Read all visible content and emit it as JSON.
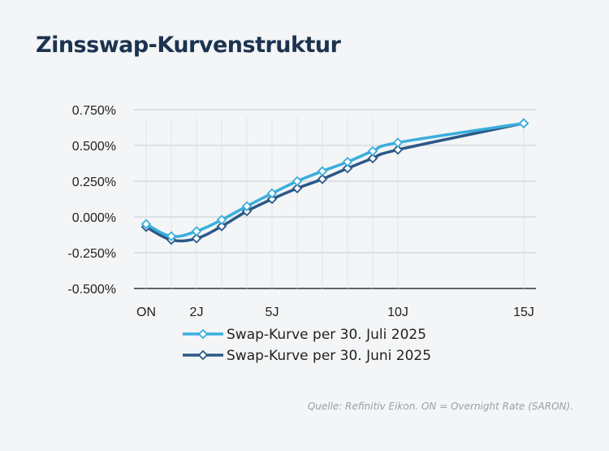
{
  "title": "Zinsswap-Kurvenstruktur",
  "source": "Quelle: Refinitiv Eikon. ON = Overnight Rate (SARON).",
  "chart_data": {
    "type": "line",
    "x": [
      0,
      1,
      2,
      3,
      4,
      5,
      6,
      7,
      8,
      9,
      10,
      15
    ],
    "xticks": [
      {
        "x": 0,
        "label": "ON"
      },
      {
        "x": 2,
        "label": "2J"
      },
      {
        "x": 5,
        "label": "5J"
      },
      {
        "x": 10,
        "label": "10J"
      },
      {
        "x": 15,
        "label": "15J"
      }
    ],
    "yticks": [
      {
        "v": 0.75,
        "label": "0.750%"
      },
      {
        "v": 0.5,
        "label": "0.500%"
      },
      {
        "v": 0.25,
        "label": "0.250%"
      },
      {
        "v": 0,
        "label": "0.000%"
      },
      {
        "v": -0.25,
        "label": "-0.250%"
      },
      {
        "v": -0.5,
        "label": "-0.500%"
      }
    ],
    "ylim": [
      -0.5,
      0.75
    ],
    "grid": true,
    "legend_position": "bottom",
    "series": [
      {
        "name": "Swap-Kurve per 30. Juli 2025",
        "color": "#3aaedc",
        "values": [
          -0.05,
          -0.135,
          -0.1,
          -0.02,
          0.075,
          0.165,
          0.25,
          0.32,
          0.385,
          0.46,
          0.52,
          0.655
        ]
      },
      {
        "name": "Swap-Kurve per 30. Juni 2025",
        "color": "#2b5887",
        "values": [
          -0.07,
          -0.16,
          -0.15,
          -0.065,
          0.04,
          0.125,
          0.2,
          0.265,
          0.34,
          0.41,
          0.47,
          0.655
        ]
      }
    ]
  }
}
